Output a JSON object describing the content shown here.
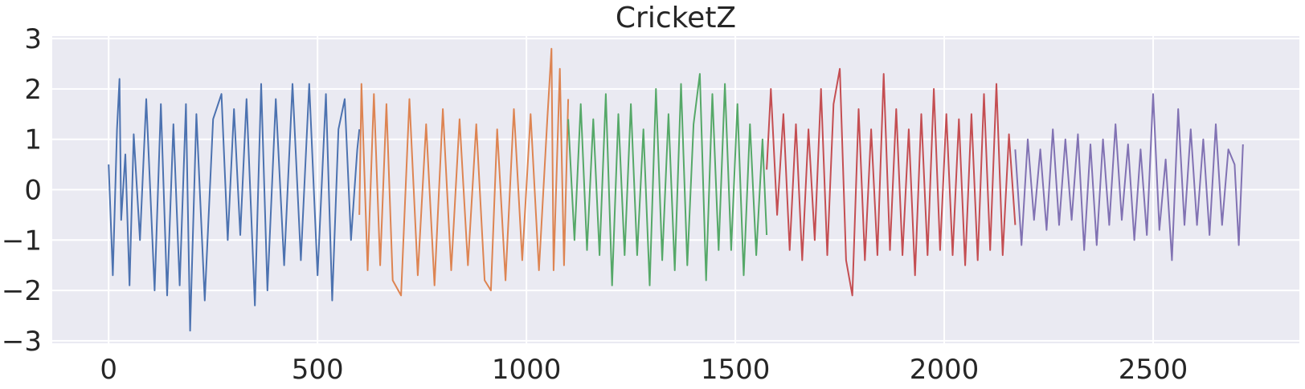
{
  "chart_data": {
    "type": "line",
    "title": "CricketZ",
    "xlabel": "",
    "ylabel": "",
    "xlim": [
      -135,
      2850
    ],
    "ylim": [
      -3.05,
      3.05
    ],
    "grid": true,
    "legend": "none",
    "x_ticks": [
      0,
      500,
      1000,
      1500,
      2000,
      2500
    ],
    "x_tick_labels": [
      "0",
      "500",
      "1000",
      "1500",
      "2000",
      "2500"
    ],
    "y_ticks": [
      3,
      2,
      1,
      0,
      -1,
      -2,
      -3
    ],
    "y_tick_labels": [
      "3",
      "2",
      "1",
      "0",
      "−1",
      "−2",
      "−3"
    ],
    "series": [
      {
        "color": "#4c72b0",
        "x": [
          0,
          10,
          20,
          26,
          30,
          40,
          50,
          60,
          75,
          90,
          110,
          125,
          140,
          155,
          170,
          185,
          195,
          210,
          230,
          250,
          270,
          285,
          300,
          315,
          330,
          350,
          365,
          380,
          400,
          420,
          440,
          460,
          480,
          500,
          520,
          535,
          550,
          565,
          580,
          595,
          600
        ],
        "y": [
          0.5,
          -1.7,
          1.2,
          2.2,
          -0.6,
          0.7,
          -1.9,
          1.1,
          -1.0,
          1.8,
          -2.0,
          1.7,
          -2.1,
          1.3,
          -1.9,
          1.7,
          -2.8,
          1.5,
          -2.2,
          1.4,
          1.9,
          -1.0,
          1.6,
          -0.9,
          1.8,
          -2.3,
          2.1,
          -2.0,
          1.8,
          -1.5,
          2.1,
          -1.4,
          2.1,
          -1.7,
          1.9,
          -2.2,
          1.2,
          1.8,
          -1.0,
          0.8,
          1.2
        ]
      },
      {
        "color": "#dd8452",
        "x": [
          600,
          605,
          620,
          635,
          650,
          665,
          680,
          700,
          720,
          740,
          760,
          780,
          800,
          820,
          840,
          860,
          880,
          900,
          915,
          930,
          950,
          970,
          990,
          1010,
          1030,
          1050,
          1060,
          1065,
          1080,
          1090,
          1100
        ],
        "y": [
          -0.5,
          2.1,
          -1.6,
          1.9,
          -1.5,
          1.7,
          -1.8,
          -2.1,
          1.8,
          -1.7,
          1.3,
          -1.9,
          1.6,
          -1.6,
          1.4,
          -1.5,
          1.3,
          -1.8,
          -2.0,
          1.2,
          -1.8,
          1.6,
          -1.4,
          1.5,
          -1.6,
          1.4,
          2.8,
          -1.6,
          2.4,
          -1.5,
          1.8
        ]
      },
      {
        "color": "#55a868",
        "x": [
          1100,
          1115,
          1130,
          1145,
          1160,
          1175,
          1190,
          1205,
          1220,
          1235,
          1250,
          1265,
          1280,
          1295,
          1310,
          1325,
          1340,
          1355,
          1370,
          1385,
          1400,
          1415,
          1430,
          1445,
          1460,
          1475,
          1490,
          1505,
          1520,
          1535,
          1550,
          1565,
          1575
        ],
        "y": [
          1.4,
          -1.0,
          1.7,
          -1.2,
          1.4,
          -1.3,
          1.9,
          -1.9,
          1.5,
          -1.3,
          1.7,
          -1.3,
          1.2,
          -1.9,
          2.0,
          -1.4,
          1.5,
          -1.6,
          2.1,
          -1.5,
          1.3,
          2.3,
          -1.8,
          1.9,
          -1.2,
          2.1,
          -1.2,
          1.7,
          -1.7,
          1.3,
          -1.3,
          1.0,
          -0.9
        ]
      },
      {
        "color": "#c44e52",
        "x": [
          1575,
          1585,
          1600,
          1615,
          1630,
          1645,
          1660,
          1675,
          1690,
          1705,
          1720,
          1735,
          1750,
          1765,
          1780,
          1795,
          1810,
          1825,
          1840,
          1855,
          1870,
          1885,
          1900,
          1915,
          1930,
          1945,
          1960,
          1975,
          1990,
          2005,
          2020,
          2035,
          2050,
          2065,
          2080,
          2095,
          2110,
          2125,
          2140,
          2155,
          2170
        ],
        "y": [
          0.4,
          2.0,
          -0.5,
          1.5,
          -1.2,
          1.3,
          -1.4,
          1.2,
          -1.0,
          2.0,
          -1.3,
          1.7,
          2.4,
          -1.4,
          -2.1,
          1.6,
          -1.4,
          1.2,
          -1.3,
          2.3,
          -1.2,
          1.6,
          -1.3,
          1.2,
          -1.7,
          1.5,
          -1.3,
          2.0,
          -1.2,
          1.5,
          -1.3,
          1.4,
          -1.5,
          1.5,
          -1.4,
          1.9,
          -1.2,
          2.1,
          -1.3,
          1.1,
          -0.7
        ]
      },
      {
        "color": "#8172b3",
        "x": [
          2170,
          2185,
          2200,
          2215,
          2230,
          2245,
          2260,
          2275,
          2290,
          2305,
          2320,
          2335,
          2350,
          2365,
          2380,
          2395,
          2410,
          2425,
          2440,
          2455,
          2470,
          2485,
          2500,
          2515,
          2530,
          2545,
          2560,
          2575,
          2590,
          2605,
          2620,
          2635,
          2650,
          2665,
          2680,
          2695,
          2705,
          2715
        ],
        "y": [
          0.8,
          -1.1,
          1.0,
          -0.6,
          0.8,
          -0.8,
          1.2,
          -0.7,
          1.0,
          -0.6,
          1.1,
          -1.2,
          0.9,
          -1.1,
          1.0,
          -0.7,
          1.3,
          -0.6,
          0.9,
          -1.0,
          0.8,
          -0.9,
          1.9,
          -0.8,
          0.6,
          -1.4,
          1.6,
          -0.7,
          1.2,
          -0.7,
          1.0,
          -0.9,
          1.3,
          -0.7,
          0.8,
          0.5,
          -1.1,
          0.9
        ]
      }
    ]
  }
}
